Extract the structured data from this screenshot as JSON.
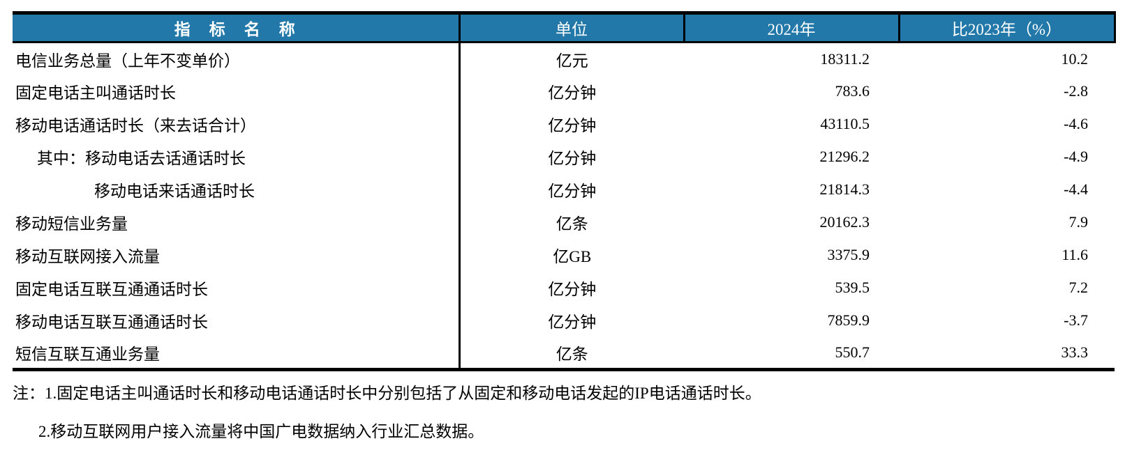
{
  "table": {
    "columns": {
      "indicator": "指　标　名　称",
      "unit": "单位",
      "year2024": "2024年",
      "vs2023": "比2023年（%）"
    },
    "rows": [
      {
        "name": "电信业务总量（上年不变单价）",
        "unit": "亿元",
        "y2024": "18311.2",
        "vs2023": "10.2"
      },
      {
        "name": "固定电话主叫通话时长",
        "unit": "亿分钟",
        "y2024": "783.6",
        "vs2023": "-2.8"
      },
      {
        "name": "移动电话通话时长（来去话合计）",
        "unit": "亿分钟",
        "y2024": "43110.5",
        "vs2023": "-4.6"
      },
      {
        "name": "其中：移动电话去话通话时长",
        "unit": "亿分钟",
        "y2024": "21296.2",
        "vs2023": "-4.9"
      },
      {
        "name": "移动电话来话通话时长",
        "unit": "亿分钟",
        "y2024": "21814.3",
        "vs2023": "-4.4"
      },
      {
        "name": "移动短信业务量",
        "unit": "亿条",
        "y2024": "20162.3",
        "vs2023": "7.9"
      },
      {
        "name": "移动互联网接入流量",
        "unit": "亿GB",
        "y2024": "3375.9",
        "vs2023": "11.6"
      },
      {
        "name": "固定电话互联互通通话时长",
        "unit": "亿分钟",
        "y2024": "539.5",
        "vs2023": "7.2"
      },
      {
        "name": "移动电话互联互通通话时长",
        "unit": "亿分钟",
        "y2024": "7859.9",
        "vs2023": "-3.7"
      },
      {
        "name": "短信互联互通业务量",
        "unit": "亿条",
        "y2024": "550.7",
        "vs2023": "33.3"
      }
    ]
  },
  "notes": [
    "注：1.固定电话主叫通话时长和移动电话通话时长中分别包括了从固定和移动电话发起的IP电话通话时长。",
    "2.移动互联网用户接入流量将中国广电数据纳入行业汇总数据。"
  ],
  "colors": {
    "header_background": "#2278A8",
    "header_text": "#FFFFFF",
    "border": "#000000",
    "body_text": "#000000"
  }
}
